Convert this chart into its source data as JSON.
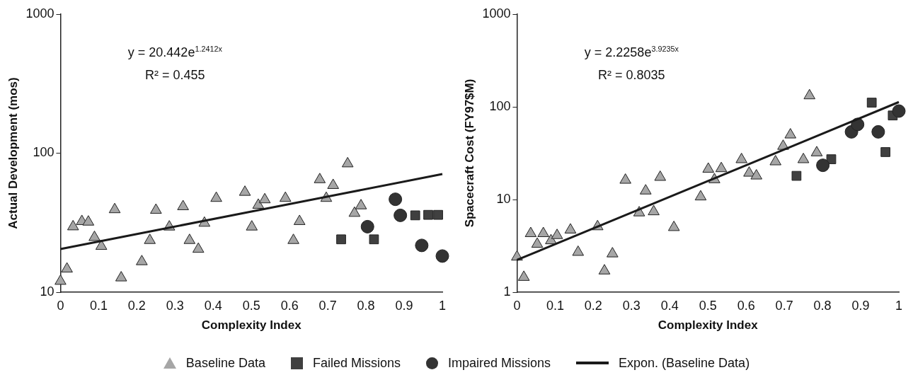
{
  "chart_data": [
    {
      "type": "scatter",
      "xlabel": "Complexity Index",
      "ylabel": "Actual Development (mos)",
      "log": "y",
      "xlim": [
        0,
        1
      ],
      "ylim": [
        10,
        1000
      ],
      "xticks": [
        0,
        0.1,
        0.2,
        0.3,
        0.4,
        0.5,
        0.6,
        0.7,
        0.8,
        0.9,
        1
      ],
      "yticks": [
        10,
        100,
        1000
      ],
      "grid": false,
      "legend": "bottom",
      "annotations": [
        "y = 20.442e$^{1.2412x}$",
        "R² = 0.455"
      ],
      "series": [
        {
          "name": "Baseline Data",
          "type": "scatter",
          "marker": "triangle",
          "color": "#a6a6a6",
          "x": [
            0,
            0.017,
            0.033,
            0.056,
            0.073,
            0.089,
            0.107,
            0.142,
            0.159,
            0.213,
            0.234,
            0.25,
            0.285,
            0.321,
            0.338,
            0.361,
            0.377,
            0.408,
            0.483,
            0.501,
            0.518,
            0.535,
            0.589,
            0.61,
            0.626,
            0.679,
            0.696,
            0.714,
            0.752,
            0.77,
            0.787
          ],
          "values": [
            12,
            14.7,
            29.6,
            32.3,
            32,
            24.8,
            21.4,
            39.3,
            12.7,
            16.6,
            23.6,
            38.9,
            29.5,
            41.3,
            23.6,
            20.4,
            31.4,
            47.4,
            52.4,
            29.5,
            42.3,
            46.3,
            47.4,
            23.6,
            32.3,
            64.6,
            47.4,
            58.7,
            84,
            37,
            41.9
          ]
        },
        {
          "name": "Failed Missions",
          "type": "scatter",
          "marker": "square",
          "color": "#404040",
          "x": [
            0.735,
            0.821,
            0.929,
            0.963,
            0.989
          ],
          "values": [
            24,
            24,
            35.7,
            36,
            36
          ]
        },
        {
          "name": "Impaired Missions",
          "type": "scatter",
          "marker": "circle",
          "color": "#333333",
          "x": [
            0.804,
            0.877,
            0.89,
            0.946,
            1
          ],
          "values": [
            29.6,
            46.6,
            35.7,
            21.7,
            18.2
          ]
        },
        {
          "name": "Expon. (Baseline Data)",
          "type": "line",
          "marker": "none",
          "line_style": "solid",
          "color": "#1a1a1a",
          "x": [
            0,
            0.25,
            0.5,
            0.75,
            1
          ],
          "values": [
            20.44,
            27.88,
            38.02,
            51.86,
            70.73
          ]
        }
      ]
    },
    {
      "type": "scatter",
      "xlabel": "Complexity Index",
      "ylabel": "Spacecraft Cost (FY97$M)",
      "log": "y",
      "xlim": [
        0,
        1
      ],
      "ylim": [
        1,
        1000
      ],
      "xticks": [
        0,
        0.1,
        0.2,
        0.3,
        0.4,
        0.5,
        0.6,
        0.7,
        0.8,
        0.9,
        1
      ],
      "yticks": [
        1,
        10,
        100,
        1000
      ],
      "grid": false,
      "annotations": [
        "y = 2.2258e$^{3.9235x}$",
        "R² = 0.8035"
      ],
      "series": [
        {
          "type": "scatter",
          "marker": "triangle",
          "color": "#a6a6a6",
          "x": [
            0,
            0.018,
            0.036,
            0.053,
            0.069,
            0.089,
            0.105,
            0.14,
            0.16,
            0.211,
            0.229,
            0.25,
            0.284,
            0.32,
            0.337,
            0.358,
            0.375,
            0.411,
            0.481,
            0.501,
            0.517,
            0.535,
            0.588,
            0.608,
            0.627,
            0.677,
            0.697,
            0.716,
            0.75,
            0.766,
            0.785
          ],
          "values": [
            2.4,
            1.45,
            4.3,
            3.3,
            4.3,
            3.6,
            4.1,
            4.7,
            2.7,
            5.1,
            1.7,
            2.6,
            16.2,
            7.2,
            12.4,
            7.4,
            17.4,
            5,
            10.7,
            21.3,
            16.4,
            21.6,
            27,
            19.3,
            18,
            25.6,
            37.6,
            49.9,
            27,
            132,
            32
          ]
        },
        {
          "type": "scatter",
          "marker": "square",
          "color": "#404040",
          "x": [
            0.732,
            0.823,
            0.929,
            0.965,
            0.984
          ],
          "values": [
            18,
            27.2,
            111,
            32.5,
            80.7
          ]
        },
        {
          "type": "scatter",
          "marker": "circle",
          "color": "#333333",
          "x": [
            0.801,
            0.876,
            0.892,
            0.946,
            1
          ],
          "values": [
            23.4,
            53.7,
            64.6,
            53.7,
            90
          ]
        },
        {
          "type": "line",
          "marker": "none",
          "line_style": "solid",
          "color": "#1a1a1a",
          "x": [
            0,
            0.25,
            0.5,
            0.75,
            1
          ],
          "values": [
            2.23,
            5.94,
            15.83,
            42.2,
            112.6
          ]
        }
      ]
    }
  ]
}
